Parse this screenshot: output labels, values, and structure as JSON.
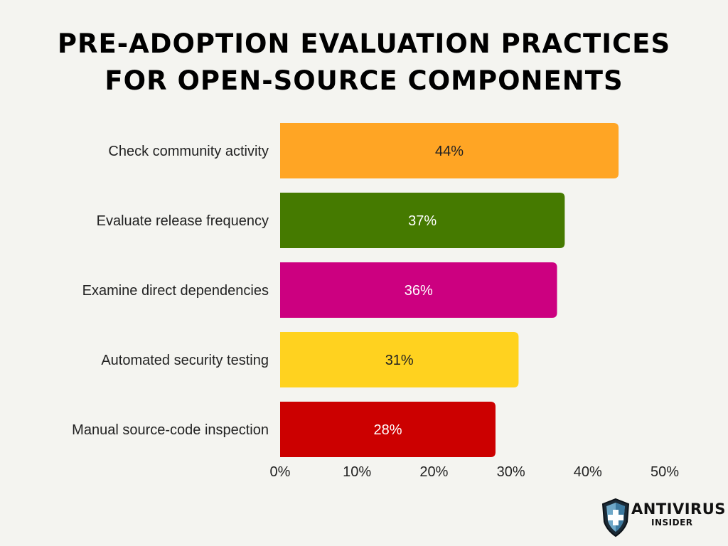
{
  "title": {
    "line1": "PRE-ADOPTION EVALUATION PRACTICES",
    "line2": "FOR OPEN-SOURCE COMPONENTS"
  },
  "chart_data": {
    "type": "bar",
    "orientation": "horizontal",
    "title": "PRE-ADOPTION EVALUATION PRACTICES FOR OPEN-SOURCE COMPONENTS",
    "categories": [
      "Check community activity",
      "Evaluate release frequency",
      "Examine direct dependencies",
      "Automated security testing",
      "Manual source-code inspection"
    ],
    "values": [
      44,
      37,
      36,
      31,
      28
    ],
    "value_labels": [
      "44%",
      "37%",
      "36%",
      "31%",
      "28%"
    ],
    "colors": [
      "#ffa524",
      "#457a00",
      "#cc0080",
      "#ffd21f",
      "#cc0000"
    ],
    "label_colors": [
      "#222222",
      "#ffffff",
      "#ffffff",
      "#222222",
      "#ffffff"
    ],
    "xlim": [
      0,
      50
    ],
    "xticks": [
      "0%",
      "10%",
      "20%",
      "30%",
      "40%",
      "50%"
    ],
    "grid": false
  },
  "logo": {
    "line1": "ANTIVIRUS",
    "line2": "INSIDER",
    "icon": "shield-cross-icon"
  }
}
